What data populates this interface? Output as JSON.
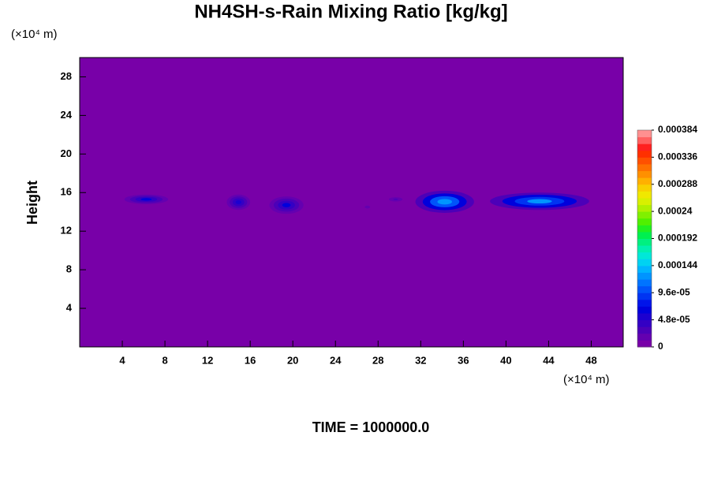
{
  "chart_data": {
    "type": "contour",
    "title": "NH4SH-s-Rain Mixing Ratio [kg/kg]",
    "y_unit": "(×10⁴ m)",
    "x_unit": "(×10⁴ m)",
    "ylabel": "Height",
    "footer": "TIME = 1000000.0",
    "xlim": [
      0,
      51
    ],
    "ylim": [
      0,
      30
    ],
    "xticks": [
      4,
      8,
      12,
      16,
      20,
      24,
      28,
      32,
      36,
      40,
      44,
      48
    ],
    "yticks": [
      4,
      8,
      12,
      16,
      20,
      24,
      28
    ],
    "clim": [
      0,
      0.000384
    ],
    "cticks": [
      0,
      {
        "value": 4.8e-05,
        "label": "4.8e-05"
      },
      {
        "value": 9.6e-05,
        "label": "9.6e-05"
      },
      0.000144,
      0.000192,
      0.00024,
      0.000288,
      0.000336,
      0.000384
    ],
    "colors": [
      "#7800a8",
      "#6400b0",
      "#4c00b8",
      "#3400c4",
      "#1c00d0",
      "#0000dc",
      "#0014ea",
      "#0034f2",
      "#0054fa",
      "#0074ff",
      "#0094ff",
      "#00b4ff",
      "#00d2f2",
      "#00e8d8",
      "#00f0b0",
      "#00f080",
      "#00f050",
      "#20f020",
      "#50f000",
      "#80f000",
      "#b0f000",
      "#d8f000",
      "#f0e800",
      "#f8d000",
      "#ffb000",
      "#ff9000",
      "#ff7000",
      "#ff5000",
      "#ff3000",
      "#ff2020",
      "#ff6060",
      "#ff9090"
    ],
    "features": [
      {
        "x": [
          4.2,
          8.3
        ],
        "y": [
          14.8,
          15.8
        ],
        "peak": 6e-05
      },
      {
        "x": [
          13.8,
          16
        ],
        "y": [
          14.2,
          15.8
        ],
        "peak": 5e-05
      },
      {
        "x": [
          17.8,
          21
        ],
        "y": [
          13.8,
          15.6
        ],
        "peak": 6e-05
      },
      {
        "x": [
          26.5,
          27.5
        ],
        "y": [
          14.2,
          14.8
        ],
        "peak": 2e-05
      },
      {
        "x": [
          28.8,
          30.5
        ],
        "y": [
          15,
          15.6
        ],
        "peak": 3e-05
      },
      {
        "x": [
          31.5,
          37
        ],
        "y": [
          13.9,
          16.2
        ],
        "peak": 0.00013
      },
      {
        "x": [
          38.5,
          47.8
        ],
        "y": [
          14.2,
          16
        ],
        "peak": 0.00012
      }
    ]
  }
}
